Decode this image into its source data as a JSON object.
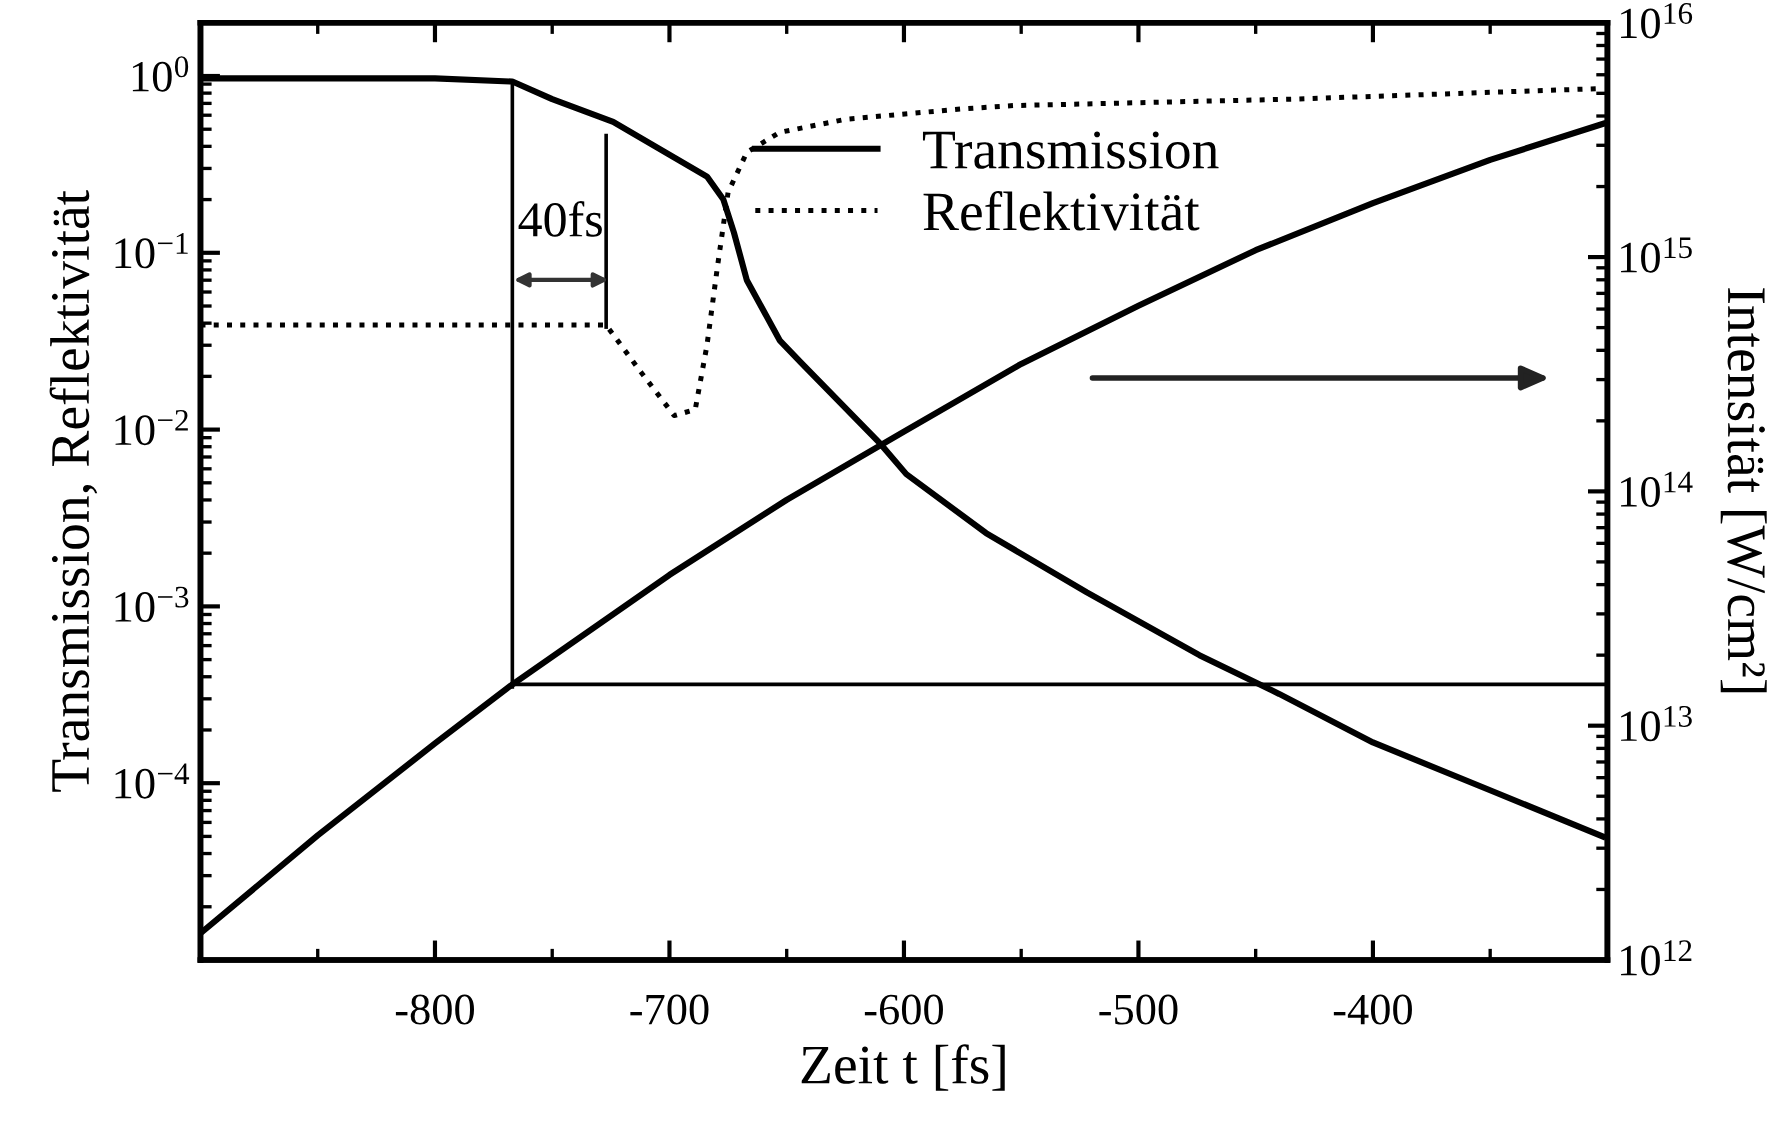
{
  "chart_data": [
    {
      "type": "line",
      "xlabel": "Zeit t [fs]",
      "ylabel": "Transmission, Reflektivität",
      "annotations": [
        "40fs"
      ],
      "xlim": [
        -900,
        -300
      ],
      "xticks": [
        -800,
        -700,
        -600,
        -500,
        -400
      ],
      "ylim": [
        1e-05,
        2
      ],
      "yticks": [
        {
          "value": 1,
          "label": "10$^{0}$"
        },
        {
          "value": 0.1,
          "label": "10$^{−1}$"
        },
        {
          "value": 0.01,
          "label": "10$^{−2}$"
        },
        {
          "value": 0.001,
          "label": "10$^{−3}$"
        },
        {
          "value": 0.0001,
          "label": "10$^{−4}$"
        }
      ],
      "log": "y",
      "grid": false,
      "legend": "top right",
      "series": [
        {
          "name": "Transmission",
          "color": "#000000",
          "line_style": "solid",
          "x": [
            -900,
            -800,
            -767,
            -750,
            -724,
            -684,
            -677,
            -672.5,
            -667,
            -653,
            -644,
            -610,
            -599,
            -565,
            -522,
            -474,
            -440,
            -400,
            -349,
            -302
          ],
          "values": [
            0.97,
            0.97,
            0.93,
            0.74,
            0.55,
            0.27,
            0.2,
            0.13,
            0.07,
            0.032,
            0.024,
            0.0083,
            0.0056,
            0.0026,
            0.0012,
            0.00053,
            0.00032,
            0.00017,
            9e-05,
            5e-05
          ]
        },
        {
          "name": "Reflektivität",
          "color": "#000000",
          "line_style": "dotted",
          "x": [
            -900,
            -727,
            -712,
            -698,
            -689,
            -684,
            -679.5,
            -675,
            -667,
            -653,
            -624.5,
            -576,
            -553.5,
            -434,
            -302
          ],
          "values": [
            0.039,
            0.039,
            0.021,
            0.012,
            0.013,
            0.03,
            0.084,
            0.22,
            0.37,
            0.48,
            0.57,
            0.65,
            0.68,
            0.74,
            0.85
          ]
        },
        {
          "color": "#000000",
          "line_style": "solid",
          "x": [
            -767,
            -767
          ],
          "values": [
            0.93,
            0.00035
          ]
        },
        {
          "color": "#000000",
          "line_style": "solid",
          "x": [
            -727,
            -727
          ],
          "values": [
            0.46,
            0.038
          ]
        }
      ]
    },
    {
      "type": "line",
      "ylabel": "Intensität [W/cm²]",
      "tick_labels": "y",
      "xlim": [
        -900,
        -300
      ],
      "ylim": [
        1000000000000.0,
        1e+16
      ],
      "yticks": [
        {
          "value": 1000000000000.0,
          "label": "10$^{12}$"
        },
        {
          "value": 10000000000000.0,
          "label": "10$^{13}$"
        },
        {
          "value": 100000000000000.0,
          "label": "10$^{14}$"
        },
        {
          "value": 1000000000000000.0,
          "label": "10$^{15}$"
        },
        {
          "value": 1e+16,
          "label": "10$^{16}$"
        }
      ],
      "log": "y",
      "grid": false,
      "series": [
        {
          "color": "#000000",
          "line_style": "solid",
          "x": [
            -900,
            -850,
            -800,
            -767,
            -700,
            -650,
            -600,
            -550,
            -500,
            -450,
            -400,
            -350,
            -302
          ],
          "values": [
            1300000000000.0,
            3400000000000.0,
            8400000000000.0,
            15000000000000.0,
            44000000000000.0,
            92000000000000.0,
            180000000000000.0,
            350000000000000.0,
            620000000000000.0,
            1070000000000000.0,
            1700000000000000.0,
            2600000000000000.0,
            3700000000000000.0
          ]
        },
        {
          "color": "#000000",
          "line_style": "solid",
          "x": [
            -767,
            -300
          ],
          "values": [
            15000000000000.0,
            15000000000000.0
          ]
        }
      ]
    }
  ]
}
